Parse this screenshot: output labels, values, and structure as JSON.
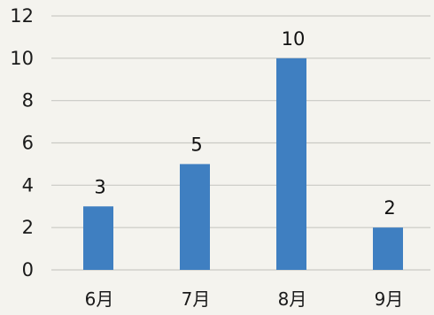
{
  "chart_data": {
    "type": "bar",
    "title": "",
    "xlabel": "",
    "ylabel": "",
    "categories": [
      "6月",
      "7月",
      "8月",
      "9月"
    ],
    "values": [
      3,
      5,
      10,
      2
    ],
    "data_labels": [
      "3",
      "5",
      "10",
      "2"
    ],
    "ylim": [
      0,
      12
    ],
    "yticks": [
      0,
      2,
      4,
      6,
      8,
      10,
      12
    ],
    "grid": true,
    "legend": "none",
    "bar_color": "#3f7fc1"
  }
}
